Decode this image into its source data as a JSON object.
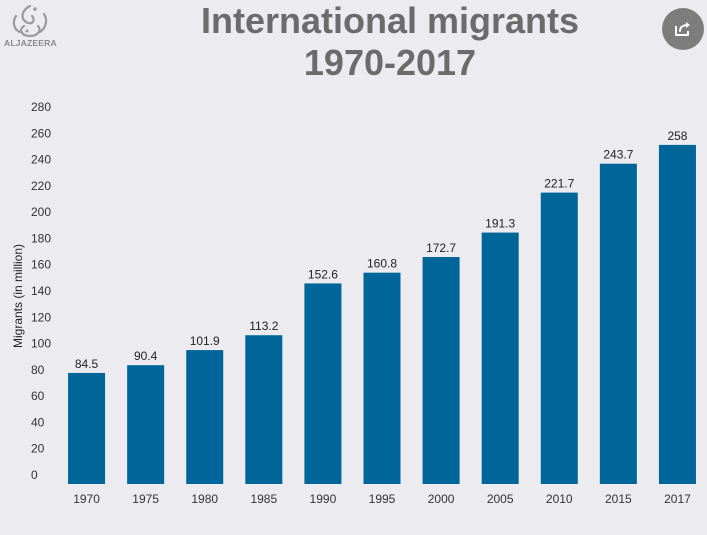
{
  "brand": {
    "logo_text": "ALJAZEERA",
    "logo_color": "#9a9a9a"
  },
  "header": {
    "title_line1": "International migrants",
    "title_line2": "1970-2017",
    "share_icon": "share-icon",
    "share_color": "#7d7d7d"
  },
  "colors": {
    "bar": "#006699",
    "background": "#ebebf0"
  },
  "chart_data": {
    "type": "bar",
    "title": "International migrants 1970-2017",
    "xlabel": "",
    "ylabel": "Migrants (in million)",
    "ylim": [
      0,
      280
    ],
    "yticks": [
      0,
      20,
      40,
      60,
      80,
      100,
      120,
      140,
      160,
      180,
      200,
      220,
      240,
      260,
      280
    ],
    "grid": false,
    "categories": [
      "1970",
      "1975",
      "1980",
      "1985",
      "1990",
      "1995",
      "2000",
      "2005",
      "2010",
      "2015",
      "2017"
    ],
    "values": [
      84.5,
      90.4,
      101.9,
      113.2,
      152.6,
      160.8,
      172.7,
      191.3,
      221.7,
      243.7,
      258
    ],
    "value_labels": [
      "84.5",
      "90.4",
      "101.9",
      "113.2",
      "152.6",
      "160.8",
      "172.7",
      "191.3",
      "221.7",
      "243.7",
      "258"
    ]
  }
}
